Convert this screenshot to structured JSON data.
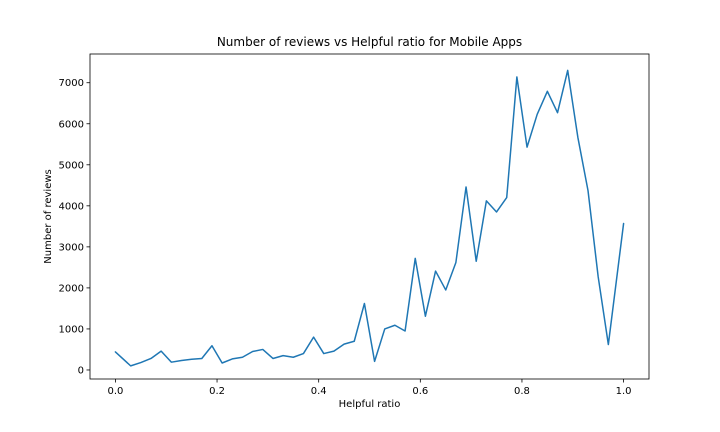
{
  "chart_data": {
    "type": "line",
    "title": "Number of reviews vs Helpful ratio for Mobile Apps",
    "xlabel": "Helpful ratio",
    "ylabel": "Number of reviews",
    "xlim": [
      -0.05,
      1.05
    ],
    "ylim": [
      -220,
      7700
    ],
    "xticks": [
      0.0,
      0.2,
      0.4,
      0.6,
      0.8,
      1.0
    ],
    "xtick_labels": [
      "0.0",
      "0.2",
      "0.4",
      "0.6",
      "0.8",
      "1.0"
    ],
    "yticks": [
      0,
      1000,
      2000,
      3000,
      4000,
      5000,
      6000,
      7000
    ],
    "ytick_labels": [
      "0",
      "1000",
      "2000",
      "3000",
      "4000",
      "5000",
      "6000",
      "7000"
    ],
    "grid": false,
    "legend": "none",
    "series": [
      {
        "color": "#1f77b4",
        "x": [
          0.0,
          0.03,
          0.05,
          0.07,
          0.09,
          0.11,
          0.13,
          0.15,
          0.17,
          0.19,
          0.21,
          0.23,
          0.25,
          0.27,
          0.29,
          0.31,
          0.33,
          0.35,
          0.37,
          0.39,
          0.41,
          0.43,
          0.45,
          0.47,
          0.49,
          0.51,
          0.53,
          0.55,
          0.57,
          0.59,
          0.61,
          0.63,
          0.65,
          0.67,
          0.69,
          0.71,
          0.73,
          0.75,
          0.77,
          0.79,
          0.81,
          0.83,
          0.85,
          0.87,
          0.89,
          0.91,
          0.93,
          0.95,
          0.97,
          1.0
        ],
        "y": [
          440,
          100,
          180,
          280,
          460,
          190,
          230,
          260,
          280,
          590,
          170,
          270,
          310,
          450,
          500,
          280,
          350,
          310,
          400,
          800,
          400,
          460,
          630,
          700,
          1620,
          210,
          1000,
          1090,
          950,
          2720,
          1310,
          2410,
          1950,
          2620,
          4460,
          2650,
          4120,
          3850,
          4200,
          7140,
          5430,
          6230,
          6790,
          6270,
          7300,
          5670,
          4370,
          2270,
          620,
          3570
        ]
      }
    ]
  }
}
